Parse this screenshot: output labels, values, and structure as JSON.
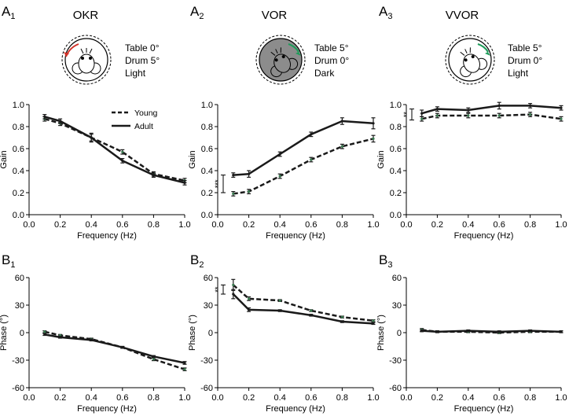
{
  "figure": {
    "legend": {
      "young": "Young",
      "adult": "Adult"
    },
    "panels_top": [
      {
        "label": "A",
        "sub": "1",
        "title": "OKR",
        "conditions": [
          "Table 0°",
          "Drum 5°",
          "Light"
        ],
        "drum_dark": false,
        "arrow_color": "#d1332a"
      },
      {
        "label": "A",
        "sub": "2",
        "title": "VOR",
        "conditions": [
          "Table 5°",
          "Drum 0°",
          "Dark"
        ],
        "drum_dark": true,
        "arrow_color": "#1f9c5a"
      },
      {
        "label": "A",
        "sub": "3",
        "title": "VVOR",
        "conditions": [
          "Table 5°",
          "Drum 0°",
          "Light"
        ],
        "drum_dark": false,
        "arrow_color": "#1f9c5a"
      }
    ],
    "panels_bottom": [
      {
        "label": "B",
        "sub": "1"
      },
      {
        "label": "B",
        "sub": "2"
      },
      {
        "label": "B",
        "sub": "3"
      }
    ],
    "colors": {
      "line": "#1a1a1a",
      "young_marker": "#3a7a50"
    }
  },
  "chart_data": [
    {
      "id": "A1",
      "type": "line",
      "xlabel": "Frequency (Hz)",
      "ylabel": "Gain",
      "xlim": [
        0.0,
        1.0
      ],
      "ylim": [
        0.0,
        1.0
      ],
      "xticks": [
        "0.0",
        "0.2",
        "0.4",
        "0.6",
        "0.8",
        "1.0"
      ],
      "yticks": [
        "0.0",
        "0.2",
        "0.4",
        "0.6",
        "0.8",
        "1.0"
      ],
      "x": [
        0.1,
        0.2,
        0.4,
        0.6,
        0.8,
        1.0
      ],
      "series": [
        {
          "name": "Young",
          "style": "dashed",
          "values": [
            0.87,
            0.83,
            0.7,
            0.57,
            0.37,
            0.31
          ],
          "errors": [
            0.02,
            0.02,
            0.03,
            0.02,
            0.02,
            0.02
          ]
        },
        {
          "name": "Adult",
          "style": "solid",
          "values": [
            0.89,
            0.85,
            0.7,
            0.49,
            0.36,
            0.29
          ],
          "errors": [
            0.02,
            0.02,
            0.04,
            0.02,
            0.02,
            0.02
          ]
        }
      ],
      "significance": null
    },
    {
      "id": "A2",
      "type": "line",
      "xlabel": "Frequency (Hz)",
      "ylabel": "Gain",
      "xlim": [
        0.0,
        1.0
      ],
      "ylim": [
        0.0,
        1.0
      ],
      "xticks": [
        "0.0",
        "0.2",
        "0.4",
        "0.6",
        "0.8",
        "1.0"
      ],
      "yticks": [
        "0.0",
        "0.2",
        "0.4",
        "0.6",
        "0.8",
        "1.0"
      ],
      "x": [
        0.1,
        0.2,
        0.4,
        0.6,
        0.8,
        1.0
      ],
      "series": [
        {
          "name": "Young",
          "style": "dashed",
          "values": [
            0.19,
            0.21,
            0.35,
            0.5,
            0.62,
            0.69
          ],
          "errors": [
            0.02,
            0.02,
            0.02,
            0.02,
            0.02,
            0.03
          ]
        },
        {
          "name": "Adult",
          "style": "solid",
          "values": [
            0.36,
            0.37,
            0.55,
            0.73,
            0.85,
            0.83
          ],
          "errors": [
            0.02,
            0.03,
            0.02,
            0.02,
            0.03,
            0.05
          ]
        }
      ],
      "significance": {
        "label": "***",
        "from": 0.2,
        "to": 0.36
      }
    },
    {
      "id": "A3",
      "type": "line",
      "xlabel": "Frequency (Hz)",
      "ylabel": "Gain",
      "xlim": [
        0.0,
        1.0
      ],
      "ylim": [
        0.0,
        1.0
      ],
      "xticks": [
        "0.0",
        "0.2",
        "0.4",
        "0.6",
        "0.8",
        "1.0"
      ],
      "yticks": [
        "0.0",
        "0.2",
        "0.4",
        "0.6",
        "0.8",
        "1.0"
      ],
      "x": [
        0.1,
        0.2,
        0.4,
        0.6,
        0.8,
        1.0
      ],
      "series": [
        {
          "name": "Young",
          "style": "dashed",
          "values": [
            0.87,
            0.9,
            0.9,
            0.9,
            0.91,
            0.87
          ],
          "errors": [
            0.02,
            0.02,
            0.02,
            0.02,
            0.02,
            0.02
          ]
        },
        {
          "name": "Adult",
          "style": "solid",
          "values": [
            0.92,
            0.96,
            0.95,
            0.99,
            0.99,
            0.97
          ],
          "errors": [
            0.03,
            0.02,
            0.02,
            0.03,
            0.02,
            0.02
          ]
        }
      ],
      "significance": {
        "label": "**",
        "from": 0.86,
        "to": 0.96
      }
    },
    {
      "id": "B1",
      "type": "line",
      "xlabel": "Frequency (Hz)",
      "ylabel": "Phase (°)",
      "xlim": [
        0.0,
        1.0
      ],
      "ylim": [
        -60,
        60
      ],
      "xticks": [
        "0.0",
        "0.2",
        "0.4",
        "0.6",
        "0.8",
        "1.0"
      ],
      "yticks": [
        "-60",
        "-30",
        "0",
        "30",
        "60"
      ],
      "x": [
        0.1,
        0.2,
        0.4,
        0.6,
        0.8,
        1.0
      ],
      "series": [
        {
          "name": "Young",
          "style": "dashed",
          "values": [
            1,
            -3,
            -7,
            -16,
            -29,
            -40
          ],
          "errors": [
            1,
            1,
            1,
            1,
            1.5,
            1.5
          ]
        },
        {
          "name": "Adult",
          "style": "solid",
          "values": [
            -2,
            -5,
            -8,
            -16,
            -26,
            -33
          ],
          "errors": [
            1,
            1,
            1,
            1,
            1,
            1.5
          ]
        }
      ],
      "significance": null
    },
    {
      "id": "B2",
      "type": "line",
      "xlabel": "Frequency (Hz)",
      "ylabel": "Phase (°)",
      "xlim": [
        0.0,
        1.0
      ],
      "ylim": [
        -60,
        60
      ],
      "xticks": [
        "0.0",
        "0.2",
        "0.4",
        "0.6",
        "0.8",
        "1.0"
      ],
      "yticks": [
        "-60",
        "-30",
        "0",
        "30",
        "60"
      ],
      "x": [
        0.1,
        0.2,
        0.4,
        0.6,
        0.8,
        1.0
      ],
      "series": [
        {
          "name": "Young",
          "style": "dashed",
          "values": [
            52,
            37,
            35,
            24,
            17,
            13
          ],
          "errors": [
            6,
            2,
            1,
            1,
            1,
            1
          ]
        },
        {
          "name": "Adult",
          "style": "solid",
          "values": [
            42,
            25,
            24,
            19,
            12,
            10
          ],
          "errors": [
            5,
            2,
            1,
            1,
            1,
            1
          ]
        }
      ],
      "significance": {
        "label": "**",
        "from": 42,
        "to": 52
      }
    },
    {
      "id": "B3",
      "type": "line",
      "xlabel": "Frequency (Hz)",
      "ylabel": "Phase (°)",
      "xlim": [
        0.0,
        1.0
      ],
      "ylim": [
        -60,
        60
      ],
      "xticks": [
        "0.0",
        "0.2",
        "0.4",
        "0.6",
        "0.8",
        "1.0"
      ],
      "yticks": [
        "-60",
        "-30",
        "0",
        "30",
        "60"
      ],
      "x": [
        0.1,
        0.2,
        0.4,
        0.6,
        0.8,
        1.0
      ],
      "series": [
        {
          "name": "Young",
          "style": "dashed",
          "values": [
            3,
            1,
            1,
            0,
            1,
            1
          ],
          "errors": [
            1.5,
            1,
            1,
            1,
            1,
            1
          ]
        },
        {
          "name": "Adult",
          "style": "solid",
          "values": [
            2,
            1,
            2,
            1,
            2,
            1
          ],
          "errors": [
            1,
            1,
            1,
            1,
            1,
            1
          ]
        }
      ],
      "significance": null
    }
  ]
}
